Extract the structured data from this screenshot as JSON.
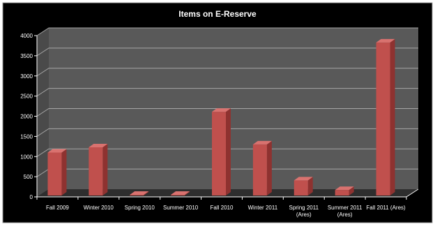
{
  "chart_data": {
    "type": "bar",
    "title": "Items on E-Reserve",
    "xlabel": "",
    "ylabel": "",
    "ylim": [
      0,
      4000
    ],
    "yticks": [
      0,
      500,
      1000,
      1500,
      2000,
      2500,
      3000,
      3500,
      4000
    ],
    "categories": [
      [
        "Fall 2009"
      ],
      [
        "Winter 2010"
      ],
      [
        "Spring 2010"
      ],
      [
        "Summer 2010"
      ],
      [
        "Fall 2010"
      ],
      [
        "Winter 2011"
      ],
      [
        "Spring 2011",
        "(Ares)"
      ],
      [
        "Summer 2011",
        "(Ares)"
      ],
      [
        "Fall 2011 (Ares)"
      ]
    ],
    "values": [
      1100,
      1230,
      20,
      50,
      2110,
      1300,
      410,
      170,
      3830
    ],
    "grid": true,
    "legend": "none",
    "colors": {
      "background": "#000000",
      "plot_wall": "#595959",
      "floor": "#2e2e2e",
      "gridline": "#a6a6a6",
      "bar_front": "#c0504d",
      "bar_side": "#8e3230",
      "bar_top": "#d9726f",
      "text": "#ffffff"
    }
  }
}
